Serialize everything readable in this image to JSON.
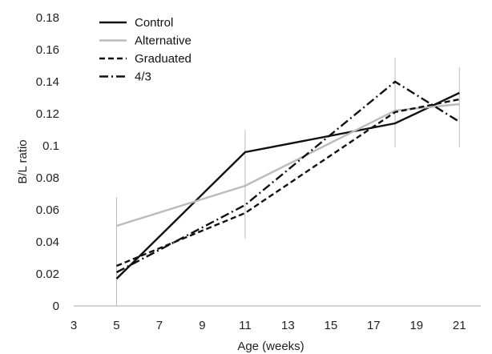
{
  "chart_data": {
    "type": "line",
    "xlabel": "Age (weeks)",
    "ylabel": "B/L ratio",
    "xlim": [
      3,
      22
    ],
    "ylim": [
      0,
      0.18
    ],
    "xticks": [
      "3",
      "5",
      "7",
      "9",
      "11",
      "13",
      "15",
      "17",
      "19",
      "21"
    ],
    "yticks": [
      "0",
      "0.02",
      "0.04",
      "0.06",
      "0.08",
      "0.1",
      "0.12",
      "0.14",
      "0.16",
      "0.18"
    ],
    "grid": false,
    "legend_position": "top-left",
    "x": [
      5,
      11,
      18,
      21
    ],
    "series": [
      {
        "name": "Control",
        "values": [
          0.017,
          0.096,
          0.114,
          0.133
        ],
        "color": "#111111",
        "dash": "solid"
      },
      {
        "name": "Alternative",
        "values": [
          0.05,
          0.075,
          0.122,
          0.126
        ],
        "color": "#bbbbbb",
        "dash": "solid"
      },
      {
        "name": "Graduated",
        "values": [
          0.025,
          0.058,
          0.121,
          0.129
        ],
        "color": "#111111",
        "dash": "dashed"
      },
      {
        "name": "4/3",
        "values": [
          0.021,
          0.063,
          0.14,
          0.115
        ],
        "color": "#111111",
        "dash": "dashdot"
      }
    ],
    "error_bars": [
      {
        "x": 5,
        "low": 0.0,
        "high": 0.068
      },
      {
        "x": 11,
        "low": 0.042,
        "high": 0.11
      },
      {
        "x": 18,
        "low": 0.099,
        "high": 0.155
      },
      {
        "x": 21,
        "low": 0.099,
        "high": 0.149
      }
    ]
  }
}
